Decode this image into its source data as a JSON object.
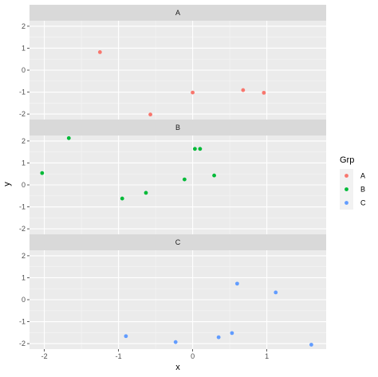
{
  "chart_data": {
    "type": "scatter",
    "facet_by": "Grp",
    "xlabel": "x",
    "ylabel": "y",
    "xlim": [
      -2.2,
      1.8
    ],
    "ylim": [
      -2.25,
      2.25
    ],
    "x_ticks": [
      -2,
      -1,
      0,
      1
    ],
    "x_tick_labels": [
      "-2",
      "-1",
      "0",
      "1"
    ],
    "y_ticks": [
      -2,
      -1,
      0,
      1,
      2
    ],
    "y_tick_labels": [
      "-2",
      "-1",
      "0",
      "1",
      "2"
    ],
    "grid": true,
    "legend": {
      "title": "Grp",
      "position": "right",
      "entries": [
        "A",
        "B",
        "C"
      ]
    },
    "panels": [
      {
        "name": "A",
        "color": "#F8766D",
        "points": [
          {
            "x": -1.25,
            "y": 0.82
          },
          {
            "x": -0.57,
            "y": -2.02
          },
          {
            "x": 0.0,
            "y": -1.02
          },
          {
            "x": 0.68,
            "y": -0.91
          },
          {
            "x": 0.96,
            "y": -1.03
          }
        ]
      },
      {
        "name": "B",
        "color": "#00BA38",
        "points": [
          {
            "x": -2.03,
            "y": 0.54
          },
          {
            "x": -1.67,
            "y": 2.13
          },
          {
            "x": -0.95,
            "y": -0.62
          },
          {
            "x": -0.63,
            "y": -0.36
          },
          {
            "x": -0.11,
            "y": 0.25
          },
          {
            "x": 0.03,
            "y": 1.64
          },
          {
            "x": 0.1,
            "y": 1.64
          },
          {
            "x": 0.29,
            "y": 0.43
          }
        ]
      },
      {
        "name": "C",
        "color": "#619CFF",
        "points": [
          {
            "x": -0.9,
            "y": -1.66
          },
          {
            "x": -0.23,
            "y": -1.93
          },
          {
            "x": 0.35,
            "y": -1.71
          },
          {
            "x": 0.53,
            "y": -1.52
          },
          {
            "x": 0.6,
            "y": 0.73
          },
          {
            "x": 1.12,
            "y": 0.33
          },
          {
            "x": 1.6,
            "y": -2.05
          }
        ]
      }
    ]
  }
}
